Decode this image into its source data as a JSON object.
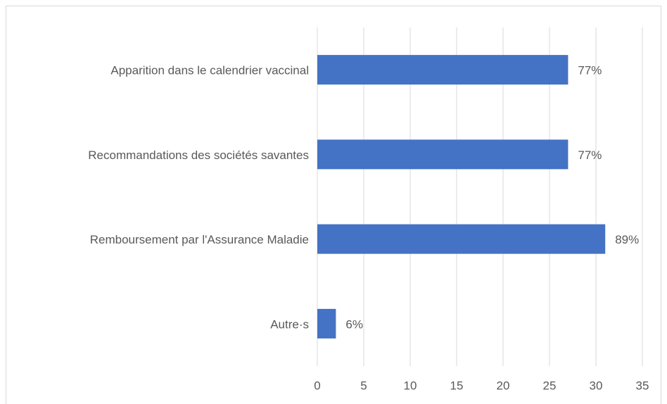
{
  "chart_data": {
    "type": "bar",
    "orientation": "horizontal",
    "categories": [
      "Apparition dans le calendrier vaccinal",
      "Recommandations des sociétés savantes",
      "Remboursement par l'Assurance Maladie",
      "Autre·s"
    ],
    "values": [
      27,
      27,
      31,
      2
    ],
    "value_labels": [
      "77%",
      "77%",
      "89%",
      "6%"
    ],
    "color": "#4472c4",
    "xlim": [
      0,
      35
    ],
    "xticks": [
      0,
      5,
      10,
      15,
      20,
      25,
      30,
      35
    ],
    "grid": true
  }
}
